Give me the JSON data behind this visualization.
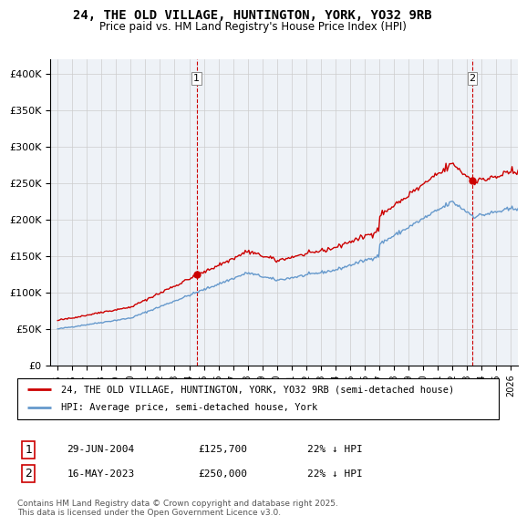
{
  "title1": "24, THE OLD VILLAGE, HUNTINGTON, YORK, YO32 9RB",
  "title2": "Price paid vs. HM Land Registry's House Price Index (HPI)",
  "legend_line1": "24, THE OLD VILLAGE, HUNTINGTON, YORK, YO32 9RB (semi-detached house)",
  "legend_line2": "HPI: Average price, semi-detached house, York",
  "transaction1_date": "29-JUN-2004",
  "transaction1_price": 125700,
  "transaction1_hpi": "22% ↓ HPI",
  "transaction2_date": "16-MAY-2023",
  "transaction2_price": 250000,
  "transaction2_hpi": "22% ↓ HPI",
  "footer": "Contains HM Land Registry data © Crown copyright and database right 2025.\nThis data is licensed under the Open Government Licence v3.0.",
  "line1_color": "#cc0000",
  "line2_color": "#6699cc",
  "vline_color": "#cc0000",
  "background_color": "#ffffff",
  "grid_color": "#cccccc",
  "chart_bg": "#eef2f7",
  "ylim": [
    0,
    420000
  ],
  "yticks": [
    0,
    50000,
    100000,
    150000,
    200000,
    250000,
    300000,
    350000,
    400000
  ],
  "transaction1_x": 2004.5,
  "transaction2_x": 2023.37,
  "xlim_left": 1994.5,
  "xlim_right": 2026.5
}
